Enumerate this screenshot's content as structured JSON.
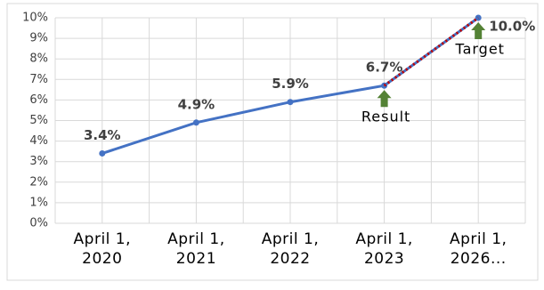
{
  "chart_data": {
    "type": "line",
    "categories": [
      "April 1, 2020",
      "April 1, 2021",
      "April 1, 2022",
      "April 1, 2023",
      "April 1, 2026..."
    ],
    "series": [
      {
        "color": "#4472c4",
        "values": [
          3.4,
          4.9,
          5.9,
          6.7,
          10.0
        ],
        "value_labels": [
          "3.4%",
          "4.9%",
          "5.9%",
          "6.7%",
          "10.0%"
        ]
      },
      {
        "color": "#c00000",
        "dashed": true,
        "values": [
          null,
          null,
          null,
          6.7,
          10.0
        ]
      }
    ],
    "ylim": [
      0,
      10
    ],
    "yticks": [
      {
        "value": 0,
        "label": "0%"
      },
      {
        "value": 1,
        "label": "1%"
      },
      {
        "value": 2,
        "label": "2%"
      },
      {
        "value": 3,
        "label": "3%"
      },
      {
        "value": 4,
        "label": "4%"
      },
      {
        "value": 5,
        "label": "5%"
      },
      {
        "value": 6,
        "label": "6%"
      },
      {
        "value": 7,
        "label": "7%"
      },
      {
        "value": 8,
        "label": "8%"
      },
      {
        "value": 9,
        "label": "9%"
      },
      {
        "value": 10,
        "label": "10%"
      }
    ],
    "grid": true,
    "annotations": [
      "Result",
      "Target"
    ]
  }
}
